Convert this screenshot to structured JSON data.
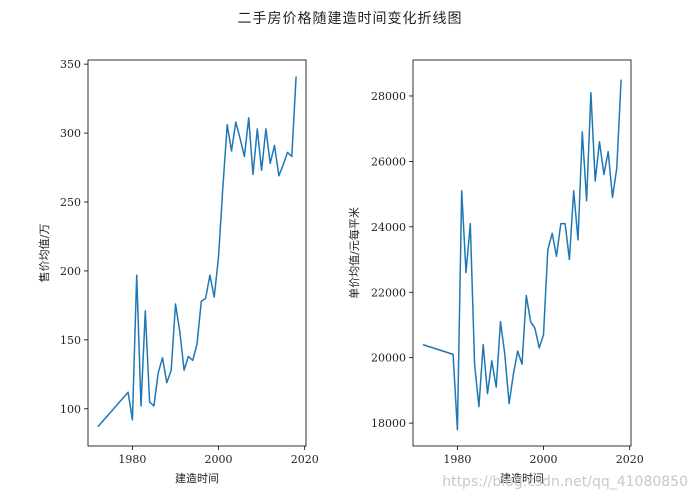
{
  "figure": {
    "title": "二手房价格随建造时间变化折线图",
    "watermark": "https://blog.csdn.net/qq_41080850"
  },
  "chart_data": [
    {
      "type": "line",
      "xlabel": "建造时间",
      "ylabel": "售价均值/万",
      "xlim": [
        1969.7,
        2020.3
      ],
      "ylim": [
        73,
        353
      ],
      "xticks": [
        1980,
        2000,
        2020
      ],
      "yticks": [
        100,
        150,
        200,
        250,
        300,
        350
      ],
      "grid": false,
      "series": [
        {
          "color": "#1f77b4",
          "x": [
            1972,
            1979,
            1980,
            1981,
            1982,
            1983,
            1984,
            1985,
            1986,
            1987,
            1988,
            1989,
            1990,
            1991,
            1992,
            1993,
            1994,
            1995,
            1996,
            1997,
            1998,
            1999,
            2000,
            2001,
            2002,
            2003,
            2004,
            2005,
            2006,
            2007,
            2008,
            2009,
            2010,
            2011,
            2012,
            2013,
            2014,
            2015,
            2016,
            2017,
            2018
          ],
          "y": [
            87,
            112,
            92,
            197,
            102,
            171,
            105,
            102,
            126,
            137,
            119,
            128,
            176,
            156,
            128,
            138,
            135,
            147,
            178,
            180,
            197,
            181,
            210,
            260,
            306,
            287,
            308,
            296,
            283,
            311,
            270,
            303,
            273,
            303,
            278,
            291,
            269,
            277,
            286,
            283,
            341
          ]
        }
      ]
    },
    {
      "type": "line",
      "xlabel": "建造时间",
      "ylabel": "单价均值/元每平米",
      "xlim": [
        1969.7,
        2020.3
      ],
      "ylim": [
        17300,
        29100
      ],
      "xticks": [
        1980,
        2000,
        2020
      ],
      "yticks": [
        18000,
        20000,
        22000,
        24000,
        26000,
        28000
      ],
      "grid": false,
      "series": [
        {
          "color": "#1f77b4",
          "x": [
            1972,
            1979,
            1980,
            1981,
            1982,
            1983,
            1984,
            1985,
            1986,
            1987,
            1988,
            1989,
            1990,
            1991,
            1992,
            1993,
            1994,
            1995,
            1996,
            1997,
            1998,
            1999,
            2000,
            2001,
            2002,
            2003,
            2004,
            2005,
            2006,
            2007,
            2008,
            2009,
            2010,
            2011,
            2012,
            2013,
            2014,
            2015,
            2016,
            2017,
            2018
          ],
          "y": [
            20400,
            20100,
            17800,
            25100,
            22600,
            24100,
            19800,
            18500,
            20400,
            18900,
            19900,
            19100,
            21100,
            20100,
            18600,
            19500,
            20200,
            19800,
            21900,
            21100,
            20900,
            20300,
            20700,
            23300,
            23800,
            23100,
            24100,
            24100,
            23000,
            25100,
            23600,
            26900,
            24800,
            28100,
            25400,
            26600,
            25600,
            26300,
            24900,
            25800,
            28500
          ]
        }
      ]
    }
  ]
}
